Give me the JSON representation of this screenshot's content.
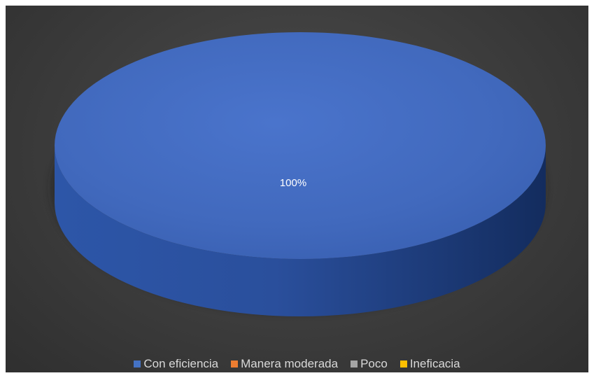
{
  "chart_data": {
    "type": "pie",
    "style": "3d",
    "categories": [
      "Con eficiencia",
      "Manera moderada",
      "Poco",
      "Ineficacia"
    ],
    "values": [
      100,
      0,
      0,
      0
    ],
    "data_labels": [
      "100%",
      "",
      "",
      ""
    ],
    "colors": [
      "#4472c4",
      "#ed7d31",
      "#a5a5a5",
      "#ffc000"
    ],
    "legend_position": "bottom"
  }
}
